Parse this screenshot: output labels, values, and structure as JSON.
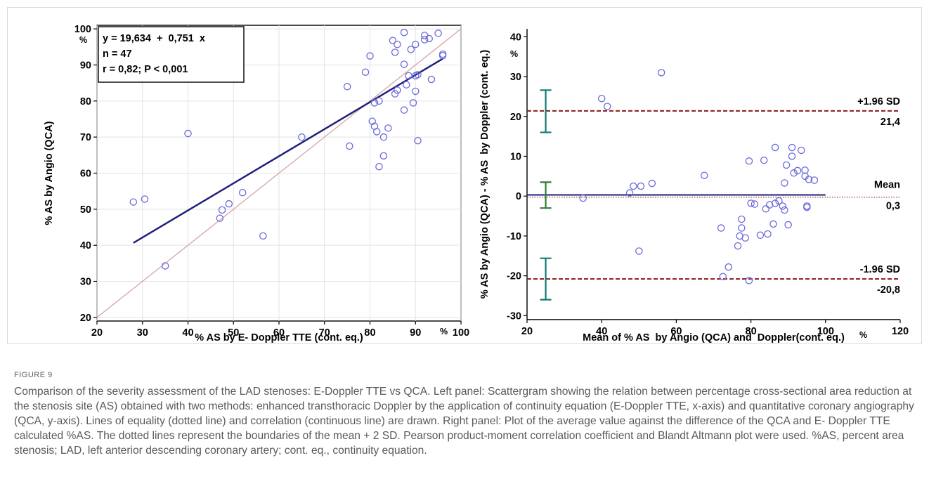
{
  "figure": {
    "label": "FIGURE 9",
    "caption": "Comparison of the severity assessment of the LAD stenoses: E-Doppler TTE vs QCA. Left panel: Scattergram showing the relation between percentage cross-sectional area reduction at the stenosis site (AS) obtained with two methods: enhanced transthoracic Doppler by the application of continuity equation (E-Doppler TTE, x-axis) and quantitative coronary angiography (QCA, y-axis). Lines of equality (dotted line) and correlation (continuous line) are drawn. Right panel: Plot of the average value against the difference of the QCA and E- Doppler TTE calculated %AS. The dotted lines represent the boundaries of the mean + 2 SD. Pearson product-moment correlation coefficient and Blandt Altmann plot were used. %AS, percent area stenosis; LAD, left anterior descending coronary artery; cont. eq., continuity equation."
  },
  "colors": {
    "marker": "#6a6adb",
    "regression": "#1e1e7a",
    "identity": "#d4a6a6",
    "limits": "#8b1a1a",
    "mean": "#1e1e7a",
    "ci_loa": "#127a72",
    "ci_mean": "#2e7d32",
    "caption": "#5a5a5a"
  },
  "chart_data": [
    {
      "type": "scatter",
      "xlabel": "% AS by E- Doppler TTE (cont. eq.)",
      "ylabel": "% AS by Angio (QCA)",
      "x_unit": "%",
      "y_unit": "%",
      "xlim": [
        20,
        100
      ],
      "ylim": [
        19,
        101
      ],
      "xticks": [
        20,
        30,
        40,
        50,
        60,
        70,
        80,
        90,
        100
      ],
      "yticks": [
        20,
        30,
        40,
        50,
        60,
        70,
        80,
        90,
        100
      ],
      "stats": [
        "y = 19,634  +  0,751  x",
        "n = 47",
        "r = 0,82; P < 0,001"
      ],
      "regression": {
        "intercept": 19.634,
        "slope": 0.751,
        "x_range": [
          28,
          96
        ]
      },
      "identity_line": true,
      "points": [
        [
          28,
          52
        ],
        [
          30.5,
          52.8
        ],
        [
          35,
          34.3
        ],
        [
          40,
          71
        ],
        [
          47,
          47.5
        ],
        [
          47.5,
          49.8
        ],
        [
          49,
          51.5
        ],
        [
          52,
          54.6
        ],
        [
          56.5,
          42.6
        ],
        [
          65,
          70
        ],
        [
          75,
          84
        ],
        [
          75.5,
          67.5
        ],
        [
          79,
          88
        ],
        [
          80,
          92.5
        ],
        [
          80.5,
          74.4
        ],
        [
          81,
          73
        ],
        [
          81,
          79.5
        ],
        [
          81.5,
          71.5
        ],
        [
          82,
          61.8
        ],
        [
          82,
          80
        ],
        [
          83,
          70
        ],
        [
          83,
          64.8
        ],
        [
          84,
          72.5
        ],
        [
          85,
          96.8
        ],
        [
          85.5,
          82
        ],
        [
          85.5,
          93.5
        ],
        [
          86,
          95.7
        ],
        [
          86,
          83
        ],
        [
          87.5,
          99
        ],
        [
          87.5,
          90.2
        ],
        [
          87.5,
          77.5
        ],
        [
          88,
          84.5
        ],
        [
          88.5,
          87
        ],
        [
          89,
          94.3
        ],
        [
          89.5,
          79.5
        ],
        [
          90,
          95.7
        ],
        [
          90,
          82.7
        ],
        [
          90,
          87
        ],
        [
          90.5,
          87.3
        ],
        [
          90.5,
          69
        ],
        [
          92,
          98.2
        ],
        [
          92,
          97
        ],
        [
          93,
          97.3
        ],
        [
          93.5,
          86
        ],
        [
          95,
          98.8
        ],
        [
          96,
          93
        ],
        [
          96,
          92.6
        ]
      ]
    },
    {
      "type": "scatter",
      "xlabel": "Mean of % AS  by Angio (QCA) and  Doppler(cont. eq.)",
      "ylabel": "% AS by Angio (QCA) - % AS  by Doppler (cont. eq.)",
      "x_unit": "%",
      "y_unit": "%",
      "xlim": [
        20,
        120
      ],
      "ylim": [
        -31,
        42
      ],
      "xticks": [
        20,
        40,
        60,
        80,
        100,
        120
      ],
      "yticks": [
        -30,
        -20,
        -10,
        0,
        10,
        20,
        30,
        40
      ],
      "mean_line": {
        "label": "Mean",
        "value_label": "0,3",
        "value": 0.3,
        "x_range": [
          20,
          100
        ]
      },
      "upper_loa": {
        "label": "+1.96 SD",
        "value_label": "21,4",
        "value": 21.4
      },
      "lower_loa": {
        "label": "-1.96 SD",
        "value_label": "-20,8",
        "value": -20.8
      },
      "ci_bars": [
        {
          "x": 25,
          "low": 16,
          "high": 26.6
        },
        {
          "x": 25,
          "low": -3,
          "high": 3.5
        },
        {
          "x": 25,
          "low": -26,
          "high": -15.6
        }
      ],
      "points": [
        [
          35,
          -0.5
        ],
        [
          40,
          24.5
        ],
        [
          41.5,
          22.5
        ],
        [
          47.5,
          0.8
        ],
        [
          48.5,
          2.5
        ],
        [
          50,
          -13.8
        ],
        [
          50.5,
          2.5
        ],
        [
          53.5,
          3.2
        ],
        [
          56,
          31
        ],
        [
          67.5,
          5.2
        ],
        [
          72,
          -8
        ],
        [
          72.5,
          -20.2
        ],
        [
          74,
          -17.8
        ],
        [
          76.5,
          -12.5
        ],
        [
          77,
          -10
        ],
        [
          77.5,
          -8
        ],
        [
          77.5,
          -5.8
        ],
        [
          78.5,
          -10.5
        ],
        [
          79.5,
          8.8
        ],
        [
          79.5,
          -21.2
        ],
        [
          80,
          -1.8
        ],
        [
          81,
          -2
        ],
        [
          82.5,
          -9.8
        ],
        [
          83.5,
          9
        ],
        [
          84,
          -3.2
        ],
        [
          84.5,
          -9.5
        ],
        [
          85,
          -2.2
        ],
        [
          86,
          -7
        ],
        [
          86.5,
          12.2
        ],
        [
          86.5,
          -1.8
        ],
        [
          87.5,
          -1.2
        ],
        [
          88.5,
          -2.5
        ],
        [
          89,
          3.3
        ],
        [
          89,
          -3.5
        ],
        [
          89.5,
          7.8
        ],
        [
          90,
          -7.2
        ],
        [
          91,
          12.2
        ],
        [
          91,
          10
        ],
        [
          91.5,
          5.8
        ],
        [
          92.5,
          6.4
        ],
        [
          93.5,
          11.5
        ],
        [
          94.5,
          6.5
        ],
        [
          94.5,
          5
        ],
        [
          95,
          -2.5
        ],
        [
          95,
          -2.8
        ],
        [
          95.5,
          4.2
        ],
        [
          97,
          4
        ]
      ]
    }
  ]
}
